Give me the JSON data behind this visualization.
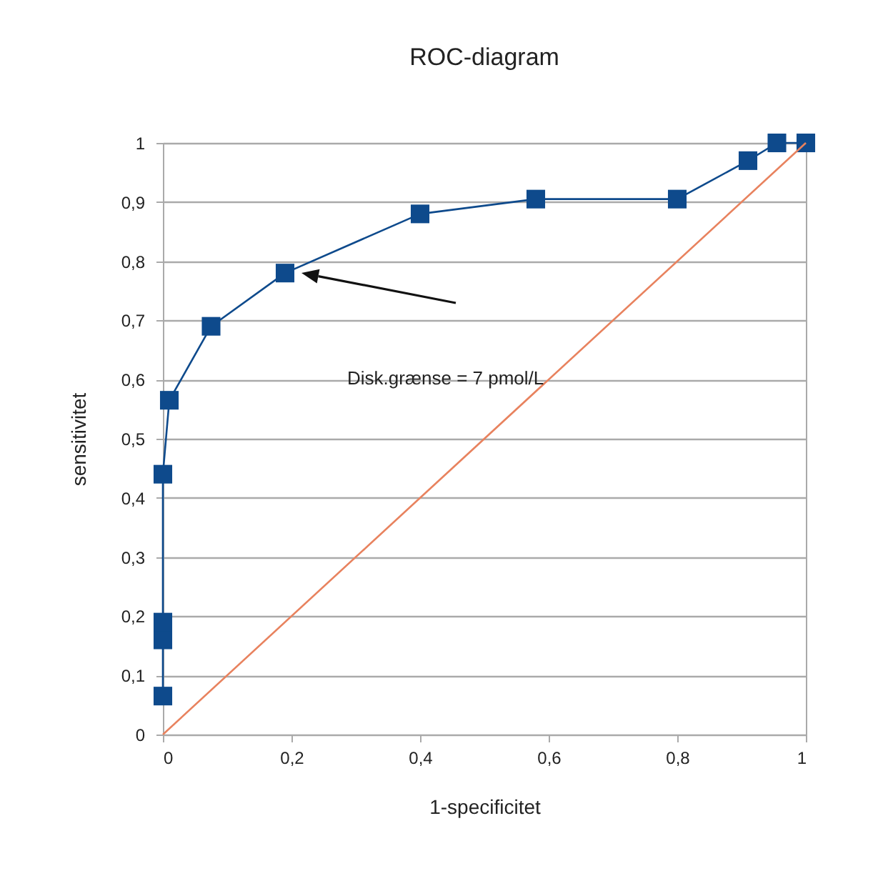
{
  "chart_data": {
    "type": "line",
    "title": "ROC-diagram",
    "xlabel": "1-specificitet",
    "ylabel": "sensitivitet",
    "xlim": [
      0,
      1
    ],
    "ylim": [
      0,
      1
    ],
    "xticks": [
      0,
      {
        "value": 0.2,
        "label": "0,2"
      },
      {
        "value": 0.4,
        "label": "0,4"
      },
      {
        "value": 0.6,
        "label": "0,6"
      },
      {
        "value": 0.8,
        "label": "0,8"
      },
      1
    ],
    "yticks": [
      0,
      {
        "value": 0.1,
        "label": "0,1"
      },
      {
        "value": 0.2,
        "label": "0,2"
      },
      {
        "value": 0.3,
        "label": "0,3"
      },
      {
        "value": 0.4,
        "label": "0,4"
      },
      {
        "value": 0.5,
        "label": "0,5"
      },
      {
        "value": 0.6,
        "label": "0,6"
      },
      {
        "value": 0.7,
        "label": "0,7"
      },
      {
        "value": 0.8,
        "label": "0,8"
      },
      {
        "value": 0.9,
        "label": "0,9"
      },
      1
    ],
    "grid": "y",
    "series": [
      {
        "color": "#0e4a8c",
        "marker": "square",
        "x": [
          0,
          0,
          0,
          0,
          0.01,
          0.075,
          0.19,
          0.4,
          0.58,
          0.8,
          0.91,
          0.955,
          1
        ],
        "values": [
          0.065,
          0.16,
          0.19,
          0.44,
          0.565,
          0.69,
          0.78,
          0.88,
          0.905,
          0.905,
          0.97,
          1,
          1
        ]
      },
      {
        "color": "#e8825e",
        "marker": "none",
        "x": [
          0,
          1
        ],
        "values": [
          0,
          1
        ]
      }
    ],
    "annotations": [
      "Disk.grænse = 7 pmol/L"
    ]
  }
}
